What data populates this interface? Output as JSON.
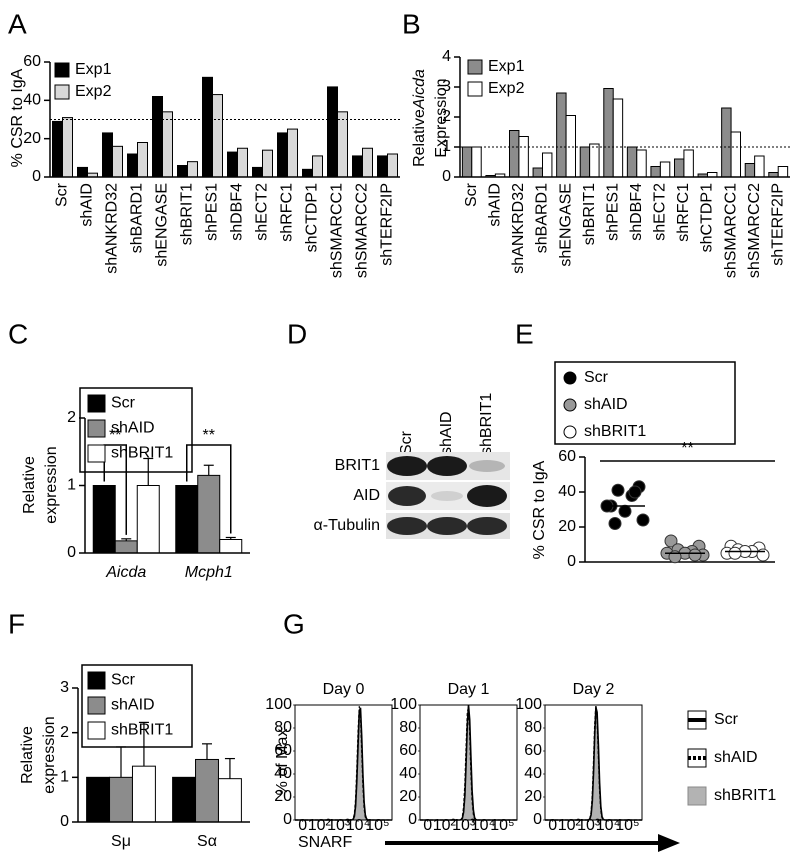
{
  "chart_data": [
    {
      "panel": "A",
      "type": "bar",
      "ylabel": [
        "% CSR to IgA"
      ],
      "categories": [
        "Scr",
        "shAID",
        "shANKRD32",
        "shBARD1",
        "shENGASE",
        "shBRIT1",
        "shPES1",
        "shDBF4",
        "shECT2",
        "shRFC1",
        "shCTDP1",
        "shSMARCC1",
        "shSMARCC2",
        "shTERF2IP"
      ],
      "series": [
        {
          "name": "Exp1",
          "color": "#000000",
          "values": [
            29,
            5,
            23,
            12,
            42,
            6,
            52,
            13,
            5,
            23,
            4,
            47,
            11,
            11
          ]
        },
        {
          "name": "Exp2",
          "color": "#d9d9d9",
          "values": [
            31,
            2,
            16,
            18,
            34,
            8,
            43,
            15,
            14,
            25,
            11,
            34,
            15,
            12
          ]
        }
      ],
      "ylim": [
        0,
        60
      ],
      "yticks": [
        0,
        20,
        40,
        60
      ],
      "reference_line": 30
    },
    {
      "panel": "B",
      "type": "bar",
      "ylabel": [
        [
          "Relative",
          "Aicda"
        ],
        "Expression"
      ],
      "categories": [
        "Scr",
        "shAID",
        "shANKRD32",
        "shBARD1",
        "shENGASE",
        "shBRIT1",
        "shPES1",
        "shDBF4",
        "shECT2",
        "shRFC1",
        "shCTDP1",
        "shSMARCC1",
        "shSMARCC2",
        "shTERF2IP"
      ],
      "series": [
        {
          "name": "Exp1",
          "color": "#8c8c8c",
          "values": [
            1,
            0.05,
            1.55,
            0.3,
            2.8,
            1.0,
            2.95,
            1.0,
            0.35,
            0.6,
            0.1,
            2.3,
            0.45,
            0.15
          ]
        },
        {
          "name": "Exp2",
          "color": "#ffffff",
          "values": [
            1,
            0.1,
            1.35,
            0.8,
            2.05,
            1.1,
            2.6,
            0.9,
            0.5,
            0.9,
            0.15,
            1.5,
            0.7,
            0.35
          ]
        }
      ],
      "ylim": [
        0,
        4
      ],
      "yticks": [
        0,
        1,
        2,
        3,
        4
      ],
      "reference_line": 1
    },
    {
      "panel": "C",
      "type": "bar",
      "ylabel": [
        "Relative",
        "expression"
      ],
      "categories": [
        "Aicda",
        "Mcph1"
      ],
      "italic_categories": true,
      "series": [
        {
          "name": "Scr",
          "color": "#000000",
          "values": [
            1,
            1
          ]
        },
        {
          "name": "shAID",
          "color": "#8c8c8c",
          "values": [
            0.18,
            1.15
          ],
          "errors": [
            0.03,
            0.15
          ]
        },
        {
          "name": "shBRIT1",
          "color": "#ffffff",
          "values": [
            1.0,
            0.2
          ],
          "errors": [
            0.4,
            0.03
          ]
        }
      ],
      "ylim": [
        0,
        2
      ],
      "yticks": [
        0,
        1,
        2
      ],
      "annotations": [
        "**",
        "**"
      ]
    },
    {
      "panel": "E",
      "type": "dot",
      "ylabel": [
        "% CSR to IgA"
      ],
      "series": [
        {
          "name": "Scr",
          "color": "#000000",
          "values": [
            32,
            43,
            41,
            38,
            29,
            32,
            24,
            22,
            40
          ],
          "median": 32
        },
        {
          "name": "shAID",
          "color": "#999999",
          "values": [
            12,
            9,
            7,
            6,
            5,
            5,
            4,
            3,
            4
          ],
          "median": 5
        },
        {
          "name": "shBRIT1",
          "color": "#ffffff",
          "values": [
            9,
            8,
            7,
            6,
            6,
            5,
            4,
            5
          ],
          "median": 6
        }
      ],
      "ylim": [
        0,
        60
      ],
      "yticks": [
        0,
        20,
        40,
        60
      ],
      "annotations": [
        "**"
      ]
    },
    {
      "panel": "F",
      "type": "bar",
      "ylabel": [
        "Relative",
        "expression"
      ],
      "categories": [
        "Sμ",
        "Sα"
      ],
      "series": [
        {
          "name": "Scr",
          "color": "#000000",
          "values": [
            1,
            1
          ]
        },
        {
          "name": "shAID",
          "color": "#8c8c8c",
          "values": [
            1,
            1.4
          ],
          "errors": [
            0.68,
            0.35
          ]
        },
        {
          "name": "shBRIT1",
          "color": "#ffffff",
          "values": [
            1.25,
            0.97
          ],
          "errors": [
            0.98,
            0.45
          ]
        }
      ],
      "ylim": [
        0,
        3
      ],
      "yticks": [
        0,
        1,
        2,
        3
      ]
    },
    {
      "panel": "G",
      "type": "flow",
      "ylabel": [
        "% of Max"
      ],
      "xlabel": "SNARF",
      "x_scale": "log",
      "days": [
        {
          "title": "Day 0",
          "peaks": [
            12600,
            12000,
            11500
          ]
        },
        {
          "title": "Day 1",
          "peaks": [
            1800,
            1700,
            1750
          ]
        },
        {
          "title": "Day 2",
          "peaks": [
            2500,
            2400,
            2450
          ]
        }
      ],
      "series": [
        {
          "name": "Scr",
          "color": "#000000",
          "style": "solid"
        },
        {
          "name": "shAID",
          "color": "#000000",
          "style": "dashed"
        },
        {
          "name": "shBRIT1",
          "color": "#b3b3b3",
          "style": "filled"
        }
      ],
      "ylim": [
        0,
        100
      ],
      "yticks": [
        0,
        20,
        40,
        60,
        80,
        100
      ],
      "xlim": [
        0,
        562000
      ],
      "xticks": [
        0,
        {
          "value": 100,
          "label": "10²"
        },
        {
          "value": 1000,
          "label": "10³"
        },
        {
          "value": 10000,
          "label": "10⁴"
        },
        {
          "value": 100000,
          "label": "10⁵"
        }
      ]
    }
  ],
  "blot": {
    "panel": "D",
    "lanes": [
      "Scr",
      "shAID",
      "shBRIT1"
    ],
    "rows": [
      "BRIT1",
      "AID",
      "α-Tubulin"
    ]
  }
}
